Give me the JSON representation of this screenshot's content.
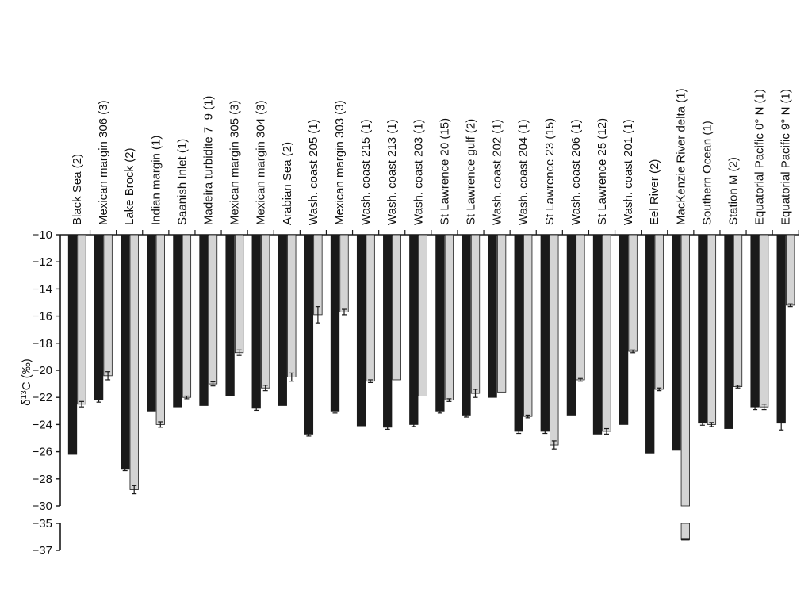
{
  "chart_data": {
    "type": "bar",
    "ylabel_prefix": "δ",
    "ylabel_sup": "13",
    "ylabel_suffix": "C (‰)",
    "y_ticks_upper": [
      "−10",
      "−12",
      "−14",
      "−16",
      "−18",
      "−20",
      "−22",
      "−24",
      "−26",
      "−28",
      "−30"
    ],
    "y_ticks_lower": [
      "−35",
      "−37"
    ],
    "ylim_upper": [
      -30,
      -10
    ],
    "ylim_lower": [
      -37,
      -35
    ],
    "colors": {
      "dark": "#1a1a1a",
      "light": "#d4d4d4",
      "edge": "#1a1a1a"
    },
    "categories": [
      "Black Sea (2)",
      "Mexican margin 306 (3)",
      "Lake Brock (2)",
      "Indian margin (1)",
      "Saanish Inlet (1)",
      "Madeira turbidite 7–9 (1)",
      "Mexican margin 305 (3)",
      "Mexican margin 304 (3)",
      "Arabian Sea (2)",
      "Wash. coast 205 (1)",
      "Mexican margin 303 (3)",
      "Wash. coast 215 (1)",
      "Wash. coast 213 (1)",
      "Wash. coast 203 (1)",
      "St Lawrence 20 (15)",
      "St Lawrence gulf (2)",
      "Wash. coast 202 (1)",
      "Wash. coast 204 (1)",
      "St Lawrence 23 (15)",
      "Wash. coast 206 (1)",
      "St Lawrence 25 (12)",
      "Wash. coast 201 (1)",
      "Eel River (2)",
      "MacKenzie River delta (1)",
      "Southern Ocean (1)",
      "Station M (2)",
      "Equatorial Pacific 0° N (1)",
      "Equatorial Pacific 9° N (1)"
    ],
    "series": [
      {
        "color": "dark",
        "values": [
          -26.2,
          -22.2,
          -27.3,
          -23.0,
          -22.7,
          -22.6,
          -21.9,
          -22.8,
          -22.6,
          -24.7,
          -23.0,
          -24.1,
          -24.2,
          -24.0,
          -23.0,
          -23.3,
          -22.0,
          -24.5,
          -24.5,
          -23.3,
          -24.7,
          -24.0,
          -26.1,
          -25.9,
          -23.9,
          -24.3,
          -22.7,
          -23.9
        ],
        "errors": [
          0,
          0.15,
          0.1,
          0,
          0,
          0,
          0,
          0.15,
          0,
          0.15,
          0.15,
          0,
          0.15,
          0.15,
          0.15,
          0.15,
          0,
          0.15,
          0.15,
          0,
          0,
          0,
          0,
          0,
          0.15,
          0,
          0.2,
          0.5
        ]
      },
      {
        "color": "light",
        "values": [
          -22.5,
          -20.4,
          -28.8,
          -24.0,
          -22.0,
          -21.0,
          -18.7,
          -21.3,
          -20.5,
          -15.9,
          -15.7,
          -20.8,
          -20.7,
          -21.9,
          -22.2,
          -21.7,
          -21.6,
          -23.4,
          -25.5,
          -20.7,
          -24.5,
          -18.6,
          -21.4,
          -36.2,
          -24.0,
          -21.2,
          -22.7,
          -15.2
        ],
        "errors": [
          0.2,
          0.3,
          0.3,
          0.2,
          0.1,
          0.15,
          0.2,
          0.2,
          0.3,
          0.6,
          0.2,
          0.1,
          0,
          0,
          0.1,
          0.3,
          0,
          0.1,
          0.3,
          0.1,
          0.2,
          0.1,
          0.1,
          0,
          0.15,
          0.1,
          0.2,
          0.1
        ]
      }
    ]
  }
}
